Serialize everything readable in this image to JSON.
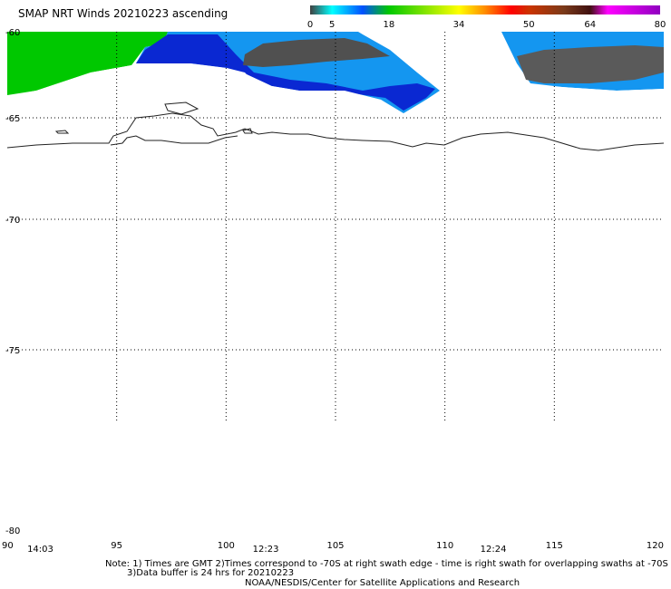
{
  "title": "SMAP NRT Winds 20210223 ascending",
  "colorbar": {
    "segments": [
      {
        "from": 0,
        "to": 5,
        "color": "#555555"
      },
      {
        "from": 5,
        "to": 18,
        "color": "#1e8cff"
      },
      {
        "from": 18,
        "to": 34,
        "color": "#00b400"
      },
      {
        "from": 34,
        "to": 50,
        "color": "#ff8c00"
      },
      {
        "from": 50,
        "to": 64,
        "color": "#a05028"
      },
      {
        "from": 64,
        "to": 80,
        "color": "#c000c0"
      }
    ],
    "tick_labels": [
      "0",
      "5",
      "18",
      "34",
      "50",
      "64",
      "80"
    ]
  },
  "lat_labels": [
    "-60",
    "-65",
    "-70",
    "-75",
    "-80"
  ],
  "lon_labels": [
    "90",
    "95",
    "100",
    "105",
    "110",
    "115",
    "120"
  ],
  "swath_times": [
    {
      "label": "14:03",
      "lon": 90.5
    },
    {
      "label": "12:23",
      "lon": 100.8
    },
    {
      "label": "12:24",
      "lon": 111.2
    }
  ],
  "notes": {
    "line1": "Note: 1) Times are GMT 2)Times correspond to -70S at right swath edge - time is right swath for overlapping swaths at -70S",
    "line2": "3)Data buffer is 24 hrs for 20210223",
    "line3": "NOAA/NESDIS/Center for Satellite Applications and Research"
  }
}
